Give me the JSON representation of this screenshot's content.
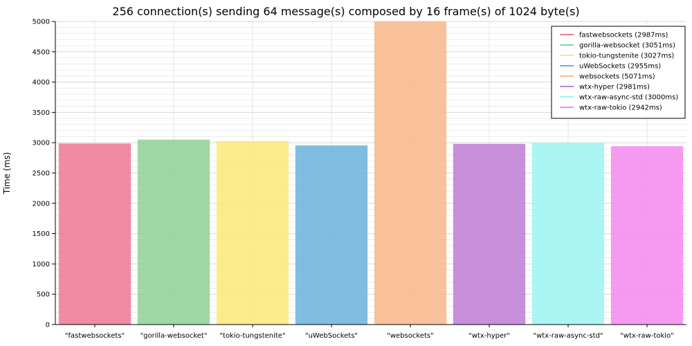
{
  "chart_data": {
    "type": "bar",
    "title": "256 connection(s) sending 64 message(s) composed by 16 frame(s) of 1024 byte(s)",
    "xlabel": "",
    "ylabel": "Time (ms)",
    "ylim": [
      0,
      5000
    ],
    "yticks": [
      0,
      500,
      1000,
      1500,
      2000,
      2500,
      3000,
      3500,
      4000,
      4500,
      5000
    ],
    "grid": true,
    "legend_position": "top-right",
    "categories": [
      "\"fastwebsockets\"",
      "\"gorilla-websocket\"",
      "\"tokio-tungstenite\"",
      "\"uWebSockets\"",
      "\"websockets\"",
      "\"wtx-hyper\"",
      "\"wtx-raw-async-std\"",
      "\"wtx-raw-tokio\""
    ],
    "values": [
      2987,
      3051,
      3027,
      2955,
      5071,
      2981,
      3000,
      2942
    ],
    "legend": [
      "fastwebsockets (2987ms)",
      "gorilla-websocket (3051ms)",
      "tokio-tungstenite (3027ms)",
      "uWebSockets (2955ms)",
      "websockets (5071ms)",
      "wtx-hyper (2981ms)",
      "wtx-raw-async-std (3000ms)",
      "wtx-raw-tokio (2942ms)"
    ],
    "colors": [
      "#ee7b96",
      "#8fd39a",
      "#fde97c",
      "#6fb4dc",
      "#f8b98c",
      "#c080d6",
      "#9ff5f1",
      "#f58cef"
    ]
  }
}
